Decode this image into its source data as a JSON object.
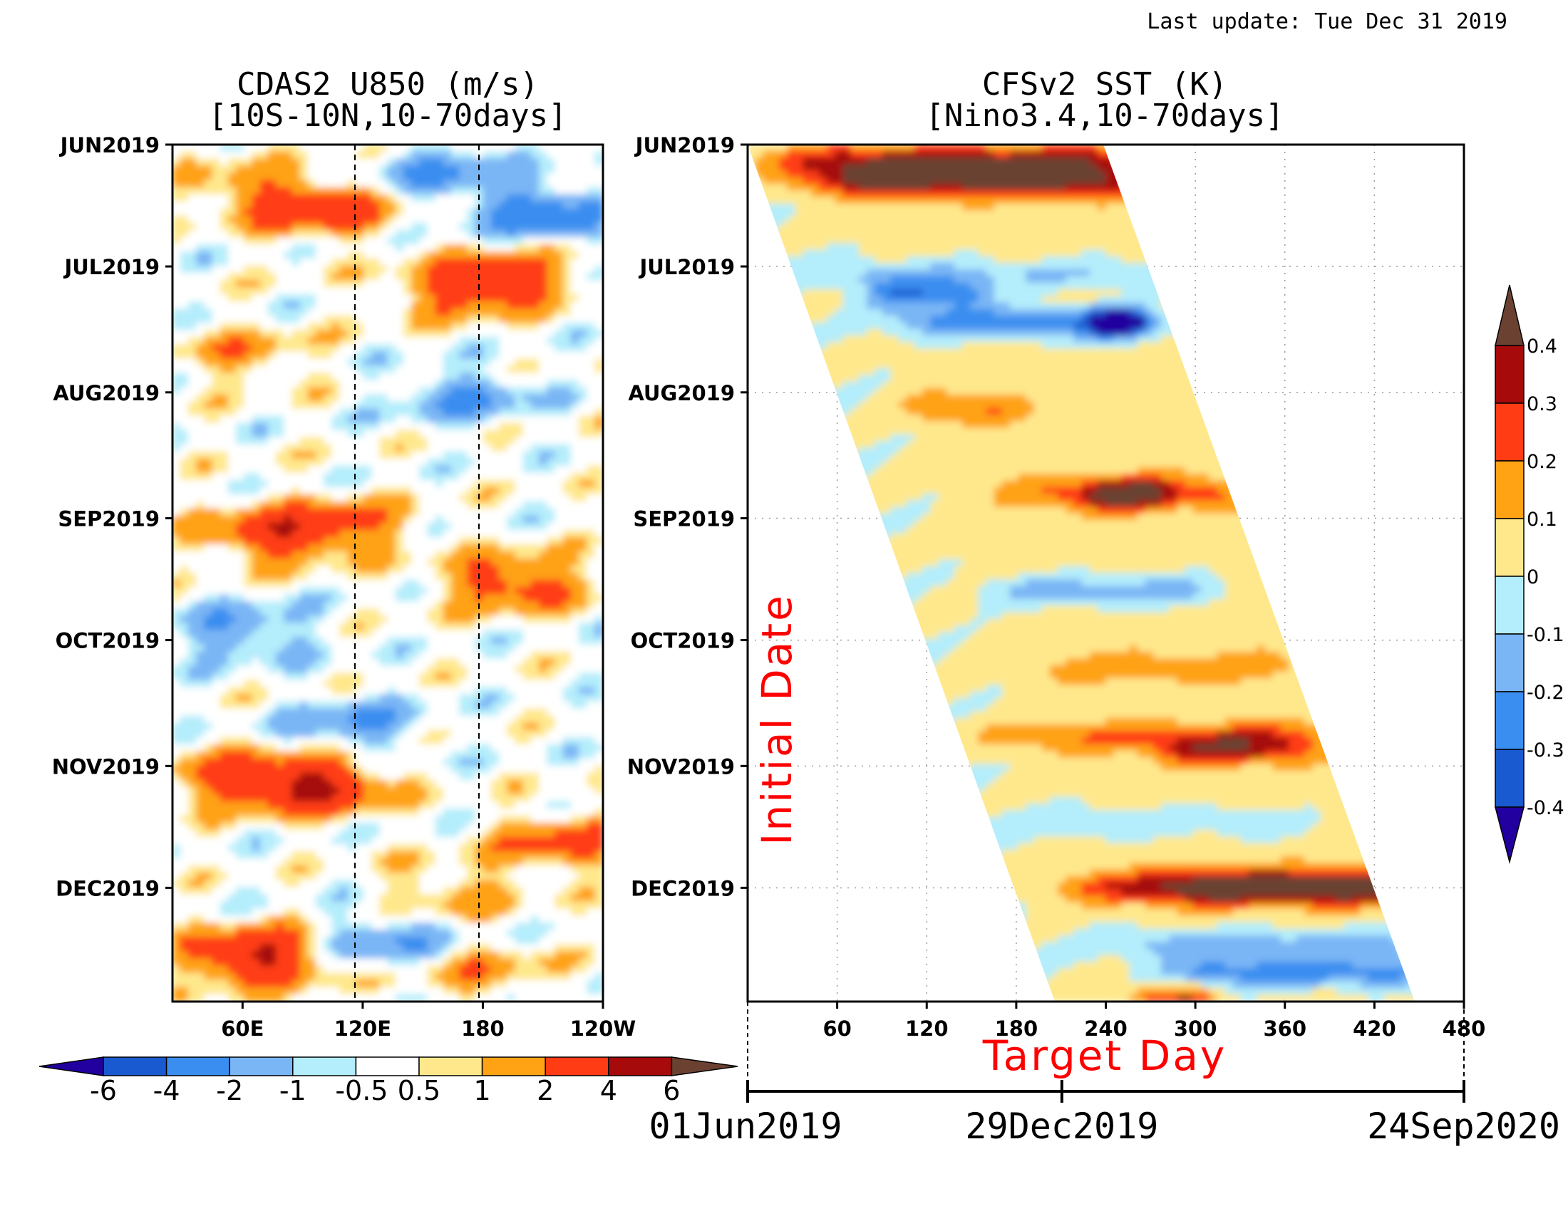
{
  "header": {
    "last_update": "Last update: Tue Dec 31 2019"
  },
  "panel_u850": {
    "title_line1": "CDAS2 U850 (m/s)",
    "title_line2": "[10S-10N,10-70days]",
    "y_ticks": [
      "JUN2019",
      "JUL2019",
      "AUG2019",
      "SEP2019",
      "OCT2019",
      "NOV2019",
      "DEC2019"
    ],
    "x_ticks": [
      "60E",
      "120E",
      "180",
      "120W"
    ],
    "colorbar_labels": [
      "-6",
      "-4",
      "-2",
      "-1",
      "-0.5",
      "0.5",
      "1",
      "2",
      "4",
      "6"
    ]
  },
  "panel_sst": {
    "title_line1": "CFSv2 SST (K)",
    "title_line2": "[Nino3.4,10-70days]",
    "y_ticks": [
      "JUN2019",
      "JUL2019",
      "AUG2019",
      "SEP2019",
      "OCT2019",
      "NOV2019",
      "DEC2019"
    ],
    "x_ticks": [
      "60",
      "120",
      "180",
      "240",
      "300",
      "360",
      "420",
      "480"
    ],
    "xlabel": "Target Day",
    "ylabel": "Initial Date",
    "colorbar_labels": [
      "0.4",
      "0.3",
      "0.2",
      "0.1",
      "0",
      "-0.1",
      "-0.2",
      "-0.3",
      "-0.4"
    ],
    "date_axis": [
      "01Jun2019",
      "29Dec2019",
      "24Sep2020"
    ]
  },
  "colors": {
    "u850_levels": [
      "#2200a0",
      "#1a5ad0",
      "#3a8ef0",
      "#7ab6f5",
      "#b4edfb",
      "#ffffff",
      "#ffe88c",
      "#ffa214",
      "#ff3c14",
      "#a60a0a",
      "#6b4232"
    ],
    "sst_levels": [
      "#2200a0",
      "#1a5ad0",
      "#3a8ef0",
      "#7ab6f5",
      "#b4edfb",
      "#ffe88c",
      "#ffa214",
      "#ff3c14",
      "#a60a0a",
      "#6b4232"
    ]
  },
  "chart_data": [
    {
      "type": "heatmap",
      "title": "CDAS2 U850 (m/s) [10S-10N,10-70days]",
      "x_ticks": [
        "60E",
        "120E",
        "180",
        "120W"
      ],
      "y_ticks": [
        "JUN2019",
        "JUL2019",
        "AUG2019",
        "SEP2019",
        "OCT2019",
        "NOV2019",
        "DEC2019"
      ],
      "y_range": [
        "01Jun2019",
        "29Dec2019"
      ],
      "contour_levels": [
        -6,
        -4,
        -2,
        -1,
        -0.5,
        0.5,
        1,
        2,
        4,
        6
      ],
      "units": "m/s",
      "reference_lines": [
        "120E",
        "180"
      ],
      "features": [
        {
          "lon": 100,
          "date": "2019-06-17",
          "value": 3
        },
        {
          "lon": 60,
          "date": "2019-06-12",
          "value": 1.5
        },
        {
          "lon": 160,
          "date": "2019-06-08",
          "value": -2
        },
        {
          "lon": 210,
          "date": "2019-06-18",
          "value": -3
        },
        {
          "lon": 190,
          "date": "2019-07-04",
          "value": 3
        },
        {
          "lon": 165,
          "date": "2019-07-08",
          "value": 1.5
        },
        {
          "lon": 60,
          "date": "2019-07-23",
          "value": 1.5
        },
        {
          "lon": 170,
          "date": "2019-08-02",
          "value": -2
        },
        {
          "lon": 112,
          "date": "2019-09-03",
          "value": 2
        },
        {
          "lon": 75,
          "date": "2019-09-05",
          "value": 3
        },
        {
          "lon": 195,
          "date": "2019-09-17",
          "value": 3
        },
        {
          "lon": 60,
          "date": "2019-09-29",
          "value": -2
        },
        {
          "lon": 115,
          "date": "2019-10-22",
          "value": -2
        },
        {
          "lon": 95,
          "date": "2019-11-06",
          "value": 4.5
        },
        {
          "lon": 50,
          "date": "2019-11-04",
          "value": 2
        },
        {
          "lon": 220,
          "date": "2019-11-20",
          "value": 2.5
        },
        {
          "lon": 165,
          "date": "2019-12-02",
          "value": 1.5
        },
        {
          "lon": 130,
          "date": "2019-12-14",
          "value": -2
        },
        {
          "lon": 67,
          "date": "2019-12-18",
          "value": 4.5
        },
        {
          "lon": 180,
          "date": "2019-12-22",
          "value": 1.5
        }
      ]
    },
    {
      "type": "heatmap",
      "title": "CFSv2 SST (K) [Nino3.4,10-70days]",
      "xlabel": "Target Day",
      "ylabel": "Initial Date",
      "x_ticks": [
        "60",
        "120",
        "180",
        "240",
        "300",
        "360",
        "420",
        "480"
      ],
      "x_range": [
        0,
        480
      ],
      "y_ticks": [
        "JUN2019",
        "JUL2019",
        "AUG2019",
        "SEP2019",
        "OCT2019",
        "NOV2019",
        "DEC2019"
      ],
      "y_range": [
        "01Jun2019",
        "29Dec2019"
      ],
      "contour_levels": [
        -0.4,
        -0.3,
        -0.2,
        -0.1,
        0,
        0.1,
        0.2,
        0.3,
        0.4
      ],
      "units": "K",
      "date_axis": [
        "01Jun2019",
        "29Dec2019",
        "24Sep2020"
      ],
      "features": [
        {
          "initial_date": "2019-06-05",
          "target_day_range": [
            42,
            240
          ],
          "value": 0.3
        },
        {
          "initial_date": "2019-06-10",
          "target_day_range": [
            65,
            240
          ],
          "value": 0.42
        },
        {
          "initial_date": "2019-07-03",
          "target_day_range": [
            60,
            270
          ],
          "value": -0.15
        },
        {
          "initial_date": "2019-07-08",
          "target_day_range": [
            95,
            150
          ],
          "value": -0.3
        },
        {
          "initial_date": "2019-07-15",
          "target_day_range": [
            120,
            260
          ],
          "value": -0.3
        },
        {
          "initial_date": "2019-07-15",
          "target_day_range": [
            245,
            252
          ],
          "value": -0.4
        },
        {
          "initial_date": "2019-08-05",
          "target_day_range": [
            120,
            170
          ],
          "value": 0.15
        },
        {
          "initial_date": "2019-08-26",
          "target_day_range": [
            200,
            320
          ],
          "value": 0.2
        },
        {
          "initial_date": "2019-08-26",
          "target_day_range": [
            240,
            270
          ],
          "value": 0.3
        },
        {
          "initial_date": "2019-09-19",
          "target_day_range": [
            180,
            300
          ],
          "value": -0.2
        },
        {
          "initial_date": "2019-10-08",
          "target_day_range": [
            210,
            360
          ],
          "value": 0.1
        },
        {
          "initial_date": "2019-10-25",
          "target_day_range": [
            180,
            380
          ],
          "value": 0.15
        },
        {
          "initial_date": "2019-10-28",
          "target_day_range": [
            290,
            360
          ],
          "value": 0.25
        },
        {
          "initial_date": "2019-11-15",
          "target_day_range": [
            200,
            360
          ],
          "value": -0.12
        },
        {
          "initial_date": "2019-12-01",
          "target_day_range": [
            230,
            420
          ],
          "value": 0.25
        },
        {
          "initial_date": "2019-12-01",
          "target_day_range": [
            300,
            420
          ],
          "value": 0.32
        },
        {
          "initial_date": "2019-12-15",
          "target_day_range": [
            260,
            440
          ],
          "value": -0.2
        },
        {
          "initial_date": "2019-12-22",
          "target_day_range": [
            300,
            440
          ],
          "value": -0.3
        },
        {
          "initial_date": "2019-12-29",
          "target_day_range": [
            270,
            300
          ],
          "value": 0.25
        }
      ]
    }
  ]
}
